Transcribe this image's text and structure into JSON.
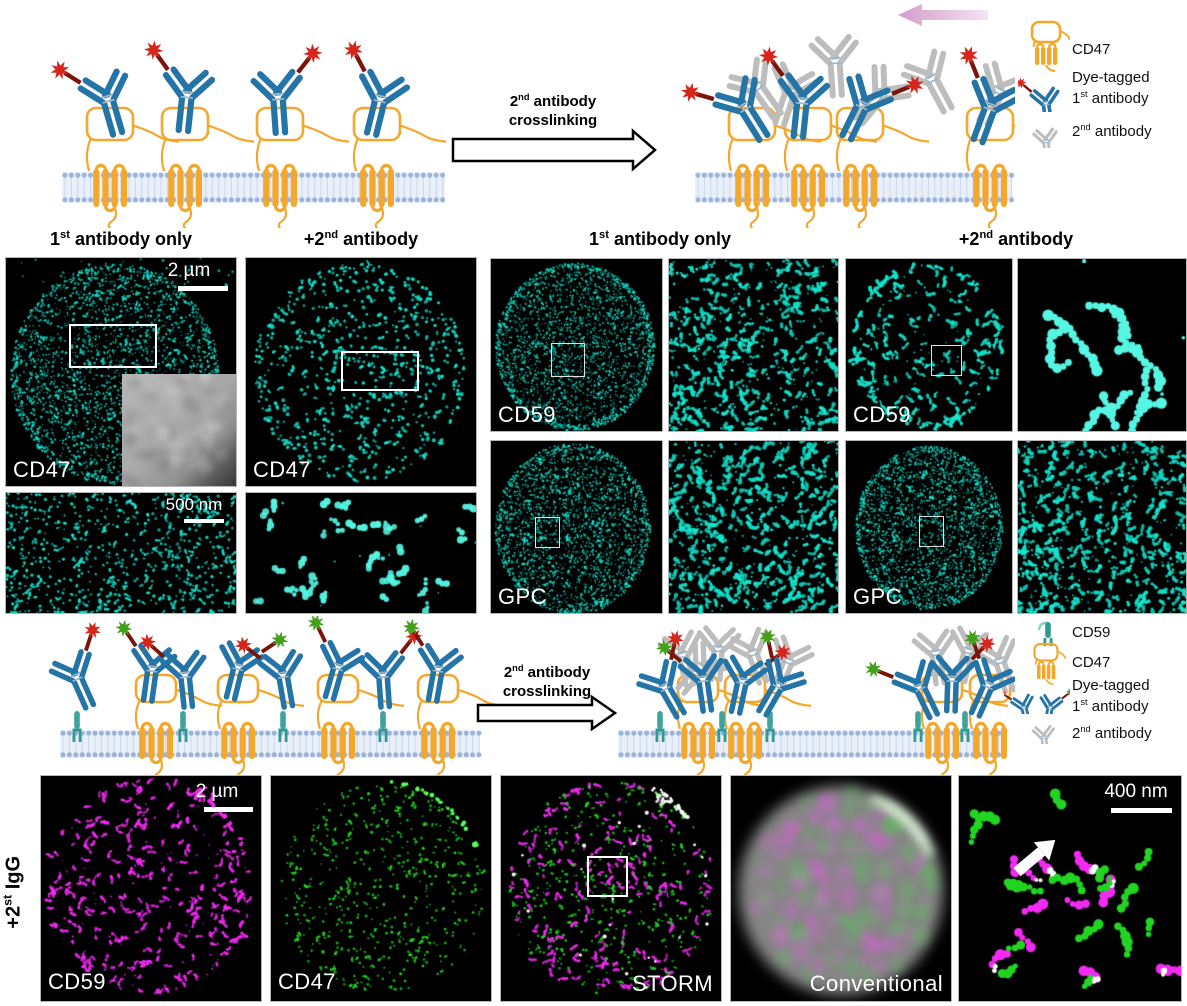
{
  "colors": {
    "cyan": "#14e6cf",
    "cyan_bright": "#55f6e3",
    "magenta": "#f32af3",
    "green": "#23d423",
    "antibody_blue": "#2474a7",
    "antibody_gray": "#bdbdbd",
    "cd47_orange": "#f4a72d",
    "cd59_teal": "#2f9a94",
    "dye_red": "#d6251b",
    "dye_green": "#43a01b",
    "dye_link": "#7a150b",
    "pink_arrow": "#d49ccb"
  },
  "headers": {
    "first_only": {
      "pre": "1",
      "sup": "st",
      "post": " antibody only"
    },
    "plus_second": {
      "pre": "+2",
      "sup": "nd",
      "post": " antibody"
    }
  },
  "crosslink": {
    "line1_pre": "2",
    "line1_sup": "nd",
    "line1_post": " antibody",
    "line2": "crosslinking"
  },
  "legend_top": {
    "cd47": "CD47",
    "dye_line1": "Dye-tagged",
    "dye_line2_pre": "1",
    "dye_line2_sup": "st",
    "dye_line2_post": " antibody",
    "second_pre": "2",
    "second_sup": "nd",
    "second_post": " antibody"
  },
  "legend_bottom": {
    "cd59": "CD59",
    "cd47": "CD47",
    "dye_line1": "Dye-tagged",
    "dye_line2_pre": "1",
    "dye_line2_sup": "st",
    "dye_line2_post": " antibody",
    "second_pre": "2",
    "second_sup": "nd",
    "second_post": " antibody"
  },
  "row_label": {
    "pre": "+2",
    "sup": "st",
    "post": " IgG"
  },
  "panels": {
    "cd47_first": {
      "label": "CD47",
      "scalebar": "2 µm"
    },
    "cd47_second": {
      "label": "CD47"
    },
    "cd47_first_zoom": {
      "scalebar": "500 nm"
    },
    "cd59_first": {
      "label": "CD59"
    },
    "cd59_second": {
      "label": "CD59"
    },
    "gpc_first": {
      "label": "GPC"
    },
    "gpc_second": {
      "label": "GPC"
    },
    "igg_cd59": {
      "label": "CD59",
      "scalebar": "2 µm"
    },
    "igg_cd47": {
      "label": "CD47"
    },
    "storm": {
      "label": "STORM"
    },
    "conventional": {
      "label": "Conventional"
    },
    "merge_zoom": {
      "scalebar": "400 nm"
    }
  }
}
